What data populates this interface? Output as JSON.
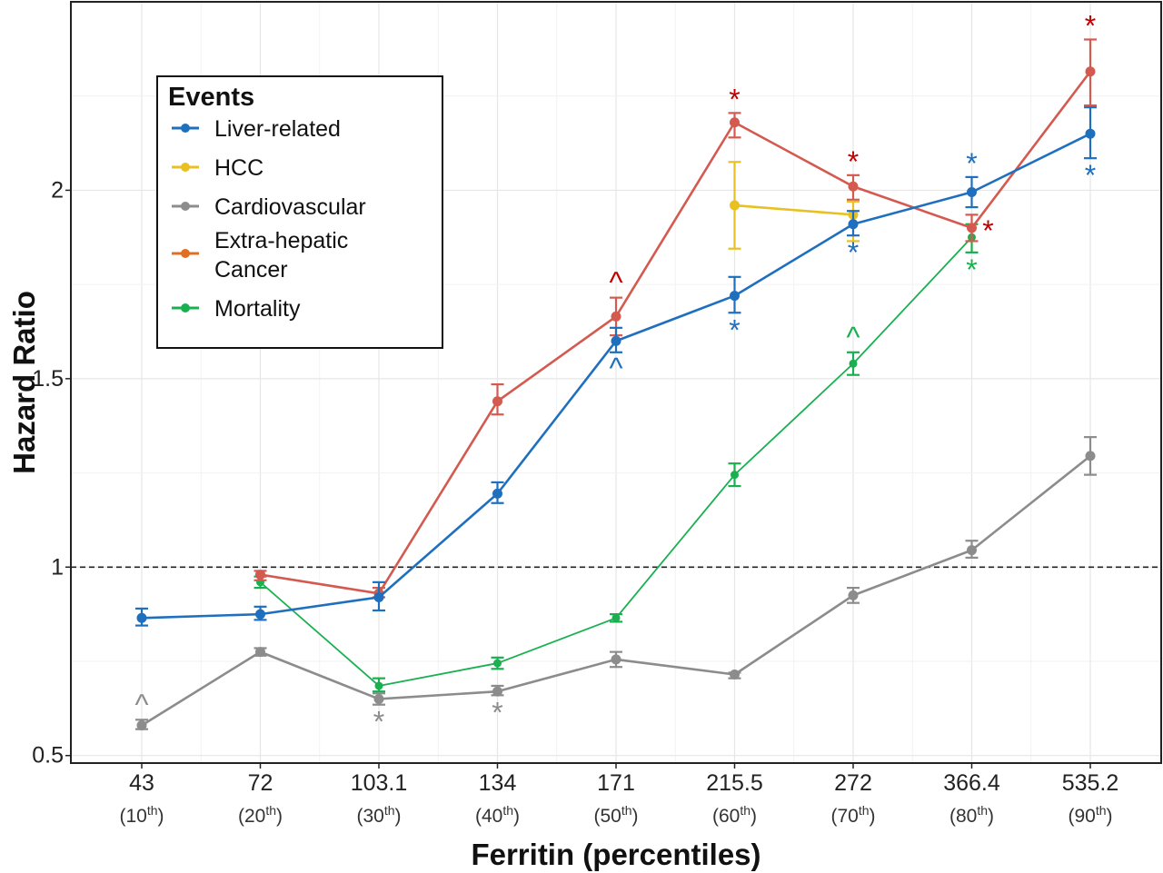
{
  "chart_data": {
    "type": "line",
    "title": "",
    "xlabel": "Ferritin (percentiles)",
    "ylabel": "Hazard Ratio",
    "categories": [
      {
        "value": "43",
        "pct": "10"
      },
      {
        "value": "72",
        "pct": "20"
      },
      {
        "value": "103.1",
        "pct": "30"
      },
      {
        "value": "134",
        "pct": "40"
      },
      {
        "value": "171",
        "pct": "50"
      },
      {
        "value": "215.5",
        "pct": "60"
      },
      {
        "value": "272",
        "pct": "70"
      },
      {
        "value": "366.4",
        "pct": "80"
      },
      {
        "value": "535.2",
        "pct": "90"
      }
    ],
    "pct_suffix": "th",
    "y_ticks": [
      "0.5",
      "1",
      "1.5",
      "2"
    ],
    "y_tick_values": [
      0.5,
      1,
      1.5,
      2
    ],
    "ylim": [
      0.48,
      2.5
    ],
    "reference_line": 1,
    "grid": true,
    "legend": {
      "title": "Events",
      "placement": "top-left",
      "entries": [
        "Liver-related",
        "HCC",
        "Cardiovascular",
        "Extra-hepatic Cancer",
        "Mortality"
      ]
    },
    "series": [
      {
        "name": "Liver-related",
        "color": "#1f6fbf",
        "values": [
          0.865,
          0.875,
          0.92,
          1.195,
          1.6,
          1.72,
          1.91,
          1.995,
          2.15
        ],
        "err_low": [
          0.845,
          0.86,
          0.885,
          1.17,
          1.57,
          1.675,
          1.88,
          1.955,
          2.085
        ],
        "err_high": [
          0.89,
          0.895,
          0.96,
          1.225,
          1.635,
          1.77,
          1.945,
          2.035,
          2.22
        ],
        "markers": [
          null,
          null,
          null,
          null,
          "^",
          "*",
          "*",
          "*",
          "*"
        ]
      },
      {
        "name": "HCC",
        "color": "#e8c020",
        "values": [
          null,
          null,
          null,
          null,
          null,
          1.96,
          1.935,
          null,
          null
        ],
        "err_low": [
          null,
          null,
          null,
          null,
          null,
          1.845,
          1.865,
          null,
          null
        ],
        "err_high": [
          null,
          null,
          null,
          null,
          null,
          2.075,
          1.97,
          null,
          null
        ],
        "markers": [
          null,
          null,
          null,
          null,
          null,
          null,
          null,
          null,
          null
        ]
      },
      {
        "name": "Cardiovascular",
        "color": "#8c8c8c",
        "values": [
          0.58,
          0.775,
          0.65,
          0.67,
          0.755,
          0.715,
          0.925,
          1.045,
          1.295
        ],
        "err_low": [
          0.57,
          0.765,
          0.635,
          0.66,
          0.735,
          0.705,
          0.905,
          1.025,
          1.245
        ],
        "err_high": [
          0.595,
          0.785,
          0.665,
          0.685,
          0.775,
          0.72,
          0.945,
          1.07,
          1.345
        ],
        "markers": [
          "^",
          null,
          "*",
          "*",
          null,
          null,
          null,
          null,
          null
        ]
      },
      {
        "name": "Extra-hepatic Cancer",
        "color": "#d45a50",
        "legend_color": "#e07020",
        "values": [
          null,
          0.98,
          0.93,
          1.44,
          1.665,
          2.18,
          2.01,
          1.9,
          2.315
        ],
        "err_low": [
          null,
          0.965,
          0.92,
          1.405,
          1.615,
          2.14,
          1.975,
          1.865,
          2.225
        ],
        "err_high": [
          null,
          0.99,
          0.945,
          1.485,
          1.715,
          2.205,
          2.04,
          1.935,
          2.4
        ],
        "markers": [
          null,
          null,
          null,
          null,
          "^",
          "*",
          "*",
          "*",
          "*"
        ]
      },
      {
        "name": "Mortality",
        "color": "#1ab050",
        "values": [
          null,
          0.96,
          0.685,
          0.745,
          0.865,
          1.245,
          1.54,
          1.875,
          null
        ],
        "err_low": [
          null,
          0.945,
          0.67,
          0.73,
          0.855,
          1.215,
          1.51,
          1.835,
          null
        ],
        "err_high": [
          null,
          0.975,
          0.705,
          0.76,
          0.875,
          1.275,
          1.57,
          1.91,
          null
        ],
        "markers": [
          null,
          null,
          null,
          null,
          null,
          null,
          "^",
          "*",
          null
        ]
      }
    ],
    "significance_colors": {
      "Liver-related": "#1f6fbf",
      "Cardiovascular": "#8c8c8c",
      "Extra-hepatic Cancer": "#c00000",
      "Mortality": "#1ab050"
    }
  }
}
